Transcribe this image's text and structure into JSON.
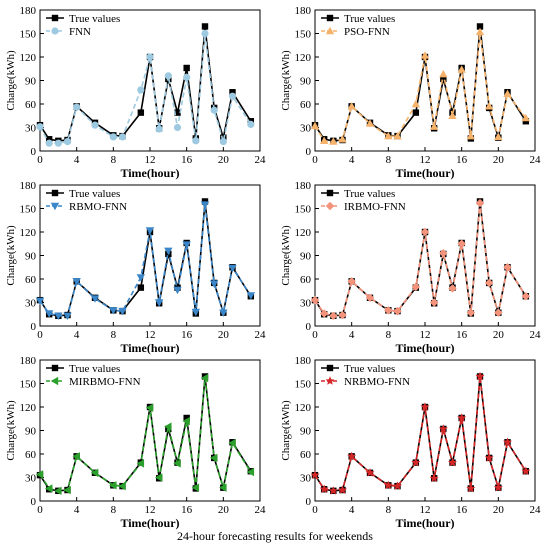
{
  "figure": {
    "caption": "24-hour forecasting results for weekends"
  },
  "chart_data": [
    {
      "type": "line",
      "xlabel": "Time(hour)",
      "ylabel": "Charge(kWh)",
      "xlim": [
        0,
        24
      ],
      "ylim": [
        0,
        180
      ],
      "xticks": [
        "0",
        "4",
        "8",
        "12",
        "16",
        "20",
        "24"
      ],
      "yticks": [
        "0",
        "30",
        "60",
        "90",
        "120",
        "150",
        "180"
      ],
      "legend_position": "top-left",
      "grid": false,
      "x": [
        0,
        1,
        2,
        3,
        4,
        6,
        8,
        9,
        11,
        12,
        13,
        14,
        15,
        16,
        17,
        18,
        19,
        20,
        21,
        23
      ],
      "series": [
        {
          "name": "True values",
          "color": "#000000",
          "marker": "square",
          "dash": false,
          "values": [
            33,
            15,
            13,
            14,
            57,
            36,
            20,
            19,
            49,
            120,
            29,
            92,
            49,
            106,
            16,
            159,
            55,
            17,
            75,
            38
          ]
        },
        {
          "name": "FNN",
          "color": "#9ecae1",
          "marker": "circle",
          "dash": true,
          "values": [
            31,
            10,
            10,
            12,
            56,
            33,
            18,
            18,
            78,
            120,
            28,
            96,
            30,
            94,
            13,
            150,
            52,
            12,
            70,
            34
          ]
        }
      ]
    },
    {
      "type": "line",
      "xlabel": "Time(hour)",
      "ylabel": "Charge(kWh)",
      "xlim": [
        0,
        24
      ],
      "ylim": [
        0,
        180
      ],
      "xticks": [
        "0",
        "4",
        "8",
        "12",
        "16",
        "20",
        "24"
      ],
      "yticks": [
        "0",
        "30",
        "60",
        "90",
        "120",
        "150",
        "180"
      ],
      "legend_position": "top-left",
      "grid": false,
      "x": [
        0,
        1,
        2,
        3,
        4,
        6,
        8,
        9,
        11,
        12,
        13,
        14,
        15,
        16,
        17,
        18,
        19,
        20,
        21,
        23
      ],
      "series": [
        {
          "name": "True values",
          "color": "#000000",
          "marker": "square",
          "dash": false,
          "values": [
            33,
            15,
            13,
            14,
            57,
            36,
            20,
            19,
            49,
            120,
            29,
            92,
            49,
            106,
            16,
            159,
            55,
            17,
            75,
            38
          ]
        },
        {
          "name": "PSO-FNN",
          "color": "#f5b26b",
          "marker": "triangle-up",
          "dash": true,
          "values": [
            32,
            13,
            12,
            15,
            57,
            35,
            19,
            19,
            60,
            122,
            31,
            98,
            45,
            104,
            19,
            152,
            57,
            18,
            73,
            42
          ]
        }
      ]
    },
    {
      "type": "line",
      "xlabel": "Time(hour)",
      "ylabel": "Charge(kWh)",
      "xlim": [
        0,
        24
      ],
      "ylim": [
        0,
        180
      ],
      "xticks": [
        "0",
        "4",
        "8",
        "12",
        "16",
        "20",
        "24"
      ],
      "yticks": [
        "0",
        "30",
        "60",
        "90",
        "120",
        "150",
        "180"
      ],
      "legend_position": "top-left",
      "grid": false,
      "x": [
        0,
        1,
        2,
        3,
        4,
        6,
        8,
        9,
        11,
        12,
        13,
        14,
        15,
        16,
        17,
        18,
        19,
        20,
        21,
        23
      ],
      "series": [
        {
          "name": "True values",
          "color": "#000000",
          "marker": "square",
          "dash": false,
          "values": [
            33,
            15,
            13,
            14,
            57,
            36,
            20,
            19,
            49,
            120,
            29,
            92,
            49,
            106,
            16,
            159,
            55,
            17,
            75,
            38
          ]
        },
        {
          "name": "RBMO-FNN",
          "color": "#3a86c8",
          "marker": "triangle-down",
          "dash": true,
          "values": [
            32,
            16,
            13,
            13,
            57,
            35,
            20,
            19,
            62,
            122,
            30,
            96,
            46,
            104,
            18,
            155,
            54,
            17,
            74,
            39
          ]
        }
      ]
    },
    {
      "type": "line",
      "xlabel": "Time(hour)",
      "ylabel": "Charge(kWh)",
      "xlim": [
        0,
        24
      ],
      "ylim": [
        0,
        180
      ],
      "xticks": [
        "0",
        "4",
        "8",
        "12",
        "16",
        "20",
        "24"
      ],
      "yticks": [
        "0",
        "30",
        "60",
        "90",
        "120",
        "150",
        "180"
      ],
      "legend_position": "top-left",
      "grid": false,
      "x": [
        0,
        1,
        2,
        3,
        4,
        6,
        8,
        9,
        11,
        12,
        13,
        14,
        15,
        16,
        17,
        18,
        19,
        20,
        21,
        23
      ],
      "series": [
        {
          "name": "True values",
          "color": "#000000",
          "marker": "square",
          "dash": false,
          "values": [
            33,
            15,
            13,
            14,
            57,
            36,
            20,
            19,
            49,
            120,
            29,
            92,
            49,
            106,
            16,
            159,
            55,
            17,
            75,
            38
          ]
        },
        {
          "name": "IRBMO-FNN",
          "color": "#f4937b",
          "marker": "diamond",
          "dash": true,
          "values": [
            33,
            16,
            13,
            14,
            57,
            36,
            20,
            19,
            50,
            120,
            30,
            93,
            48,
            105,
            17,
            157,
            55,
            17,
            75,
            38
          ]
        }
      ]
    },
    {
      "type": "line",
      "xlabel": "Time(hour)",
      "ylabel": "Charge(kWh)",
      "xlim": [
        0,
        24
      ],
      "ylim": [
        0,
        180
      ],
      "xticks": [
        "0",
        "4",
        "8",
        "12",
        "16",
        "20",
        "24"
      ],
      "yticks": [
        "0",
        "30",
        "60",
        "90",
        "120",
        "150",
        "180"
      ],
      "legend_position": "top-left",
      "grid": false,
      "x": [
        0,
        1,
        2,
        3,
        4,
        6,
        8,
        9,
        11,
        12,
        13,
        14,
        15,
        16,
        17,
        18,
        19,
        20,
        21,
        23
      ],
      "series": [
        {
          "name": "True values",
          "color": "#000000",
          "marker": "square",
          "dash": false,
          "values": [
            33,
            15,
            13,
            14,
            57,
            36,
            20,
            19,
            49,
            120,
            29,
            92,
            49,
            106,
            16,
            159,
            55,
            17,
            75,
            38
          ]
        },
        {
          "name": "MIRBMO-FNN",
          "color": "#2ca02c",
          "marker": "triangle-left",
          "dash": true,
          "values": [
            34,
            16,
            13,
            14,
            57,
            36,
            20,
            19,
            48,
            119,
            30,
            95,
            48,
            102,
            17,
            157,
            55,
            17,
            74,
            37
          ]
        }
      ]
    },
    {
      "type": "line",
      "xlabel": "Time(hour)",
      "ylabel": "Charge(kWh)",
      "xlim": [
        0,
        24
      ],
      "ylim": [
        0,
        180
      ],
      "xticks": [
        "0",
        "4",
        "8",
        "12",
        "16",
        "20",
        "24"
      ],
      "yticks": [
        "0",
        "30",
        "60",
        "90",
        "120",
        "150",
        "180"
      ],
      "legend_position": "top-left",
      "grid": false,
      "x": [
        0,
        1,
        2,
        3,
        4,
        6,
        8,
        9,
        11,
        12,
        13,
        14,
        15,
        16,
        17,
        18,
        19,
        20,
        21,
        23
      ],
      "series": [
        {
          "name": "True values",
          "color": "#000000",
          "marker": "square",
          "dash": false,
          "values": [
            33,
            15,
            13,
            14,
            57,
            36,
            20,
            19,
            49,
            120,
            29,
            92,
            49,
            106,
            16,
            159,
            55,
            17,
            75,
            38
          ]
        },
        {
          "name": "NRBMO-FNN",
          "color": "#d62728",
          "marker": "star",
          "dash": true,
          "values": [
            33,
            15,
            13,
            14,
            57,
            36,
            20,
            19,
            49,
            120,
            29,
            92,
            49,
            106,
            16,
            159,
            55,
            17,
            75,
            38
          ]
        }
      ]
    }
  ]
}
